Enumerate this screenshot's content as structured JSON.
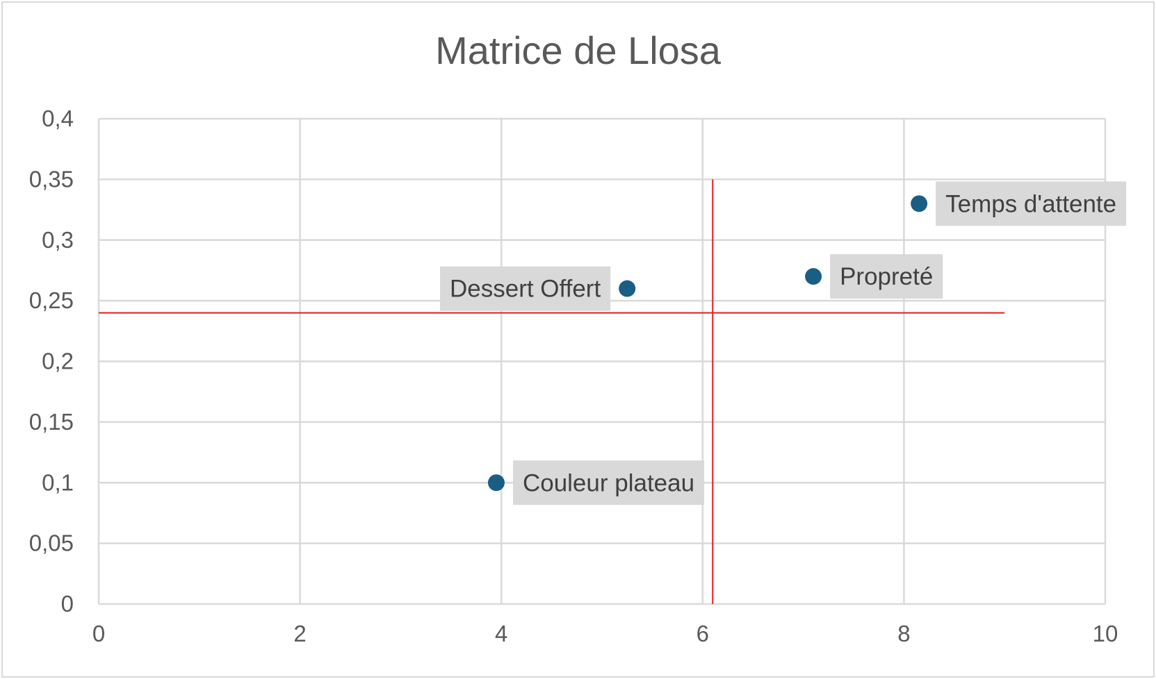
{
  "chart_data": {
    "type": "scatter",
    "title": "Matrice de Llosa",
    "xlabel": "",
    "ylabel": "",
    "xlim": [
      0,
      10
    ],
    "ylim": [
      0,
      0.4
    ],
    "x_ticks": [
      0,
      2,
      4,
      6,
      8,
      10
    ],
    "x_tick_labels": [
      "0",
      "2",
      "4",
      "6",
      "8",
      "10"
    ],
    "y_ticks": [
      0,
      0.05,
      0.1,
      0.15,
      0.2,
      0.25,
      0.3,
      0.35,
      0.4
    ],
    "y_tick_labels": [
      "0",
      "0,05",
      "0,1",
      "0,15",
      "0,2",
      "0,25",
      "0,3",
      "0,35",
      "0,4"
    ],
    "grid": true,
    "legend": "none",
    "marker_color": "#1a5e84",
    "label_bg_color": "#d9d9d9",
    "reference_line_color": "#e8191c",
    "points": [
      {
        "label": "Temps d'attente",
        "x": 8.15,
        "y": 0.33,
        "label_side": "right"
      },
      {
        "label": "Propreté",
        "x": 7.1,
        "y": 0.27,
        "label_side": "right"
      },
      {
        "label": "Dessert Offert",
        "x": 5.25,
        "y": 0.26,
        "label_side": "left"
      },
      {
        "label": "Couleur plateau",
        "x": 3.95,
        "y": 0.1,
        "label_side": "right"
      }
    ],
    "reference_lines": [
      {
        "orientation": "vertical",
        "x": 6.1,
        "y_from": 0,
        "y_to": 0.35
      },
      {
        "orientation": "horizontal",
        "y": 0.24,
        "x_from": 0,
        "x_to": 9
      }
    ]
  }
}
